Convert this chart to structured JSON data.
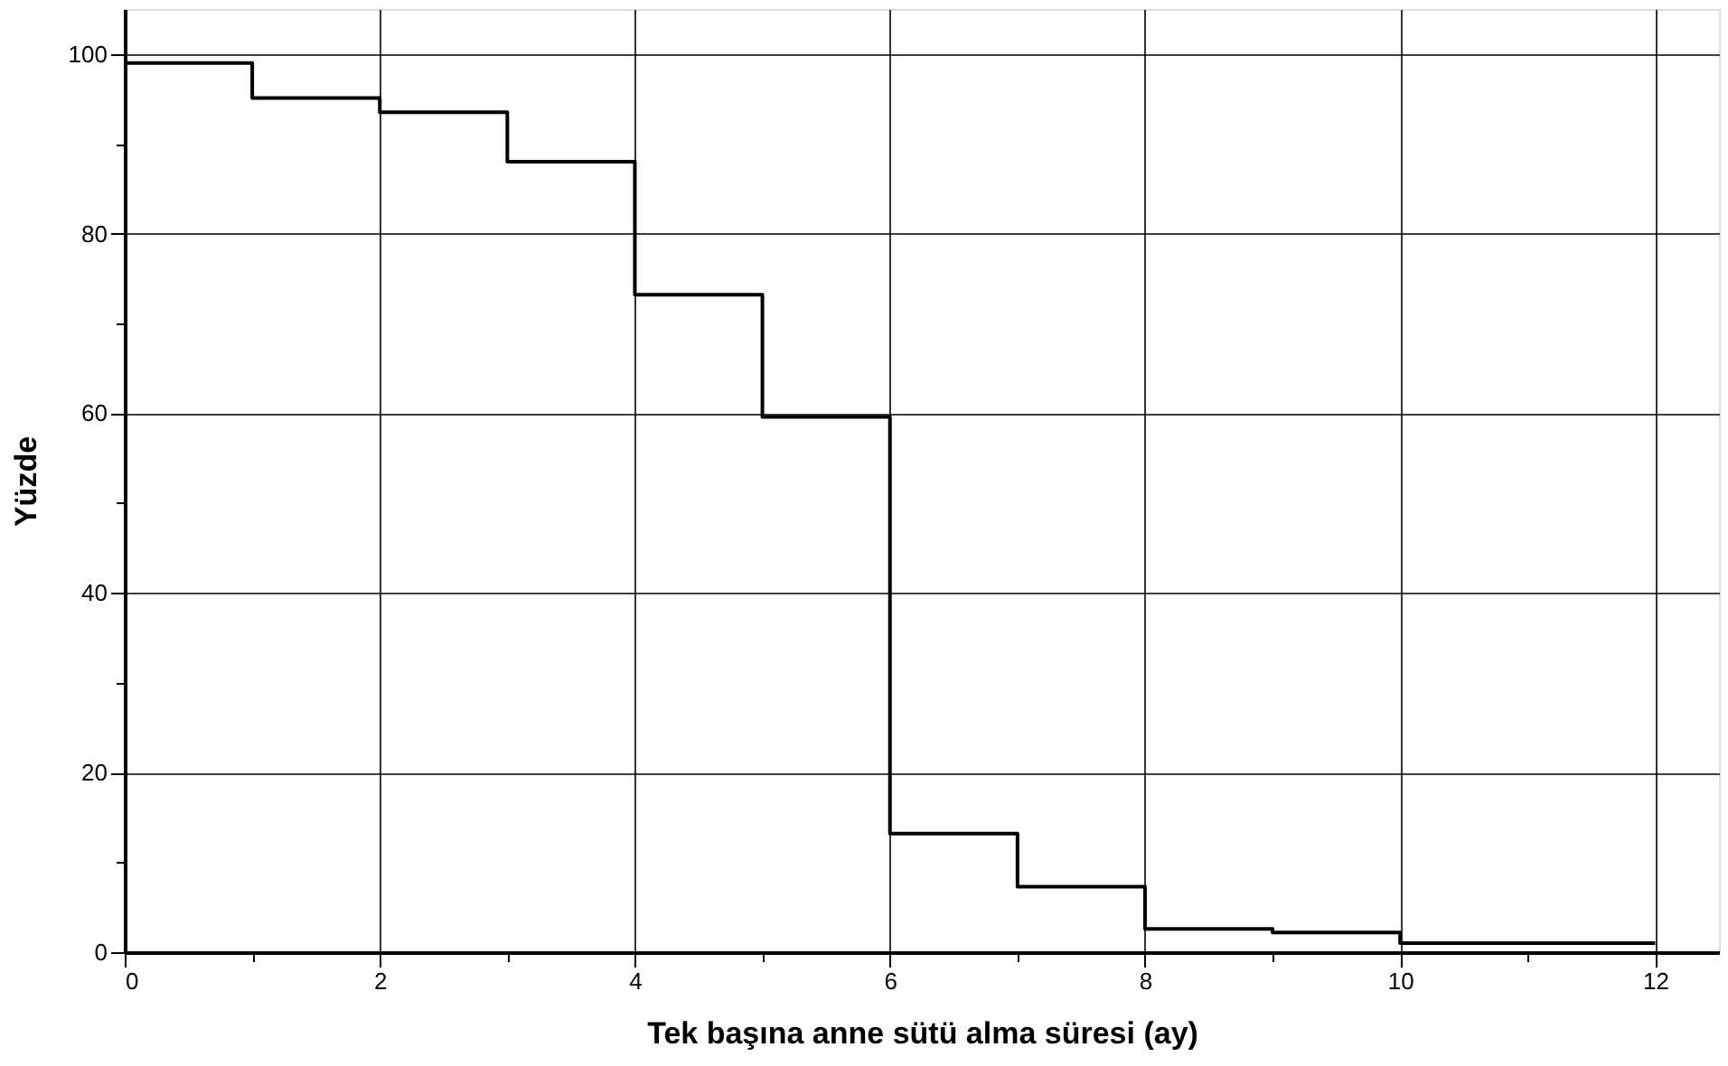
{
  "chart_data": {
    "type": "step",
    "xlabel": "Tek başına anne sütü alma süresi (ay)",
    "ylabel": "Yüzde",
    "x": [
      0,
      1,
      2,
      3,
      4,
      5,
      6,
      7,
      8,
      9,
      10,
      11,
      12
    ],
    "values": [
      99,
      95.1,
      93.5,
      88,
      73.2,
      59.6,
      13.2,
      7.3,
      2.6,
      2.2,
      1,
      1,
      1
    ],
    "color": "#000000",
    "xlim": [
      0,
      12.5
    ],
    "ylim": [
      0,
      105
    ],
    "xticks": [
      0,
      {
        "value": 1,
        "label": null
      },
      2,
      {
        "value": 3,
        "label": null
      },
      4,
      {
        "value": 5,
        "label": null
      },
      6,
      {
        "value": 7,
        "label": null
      },
      8,
      {
        "value": 9,
        "label": null
      },
      10,
      {
        "value": 11,
        "label": null
      },
      12
    ],
    "yticks": [
      0,
      {
        "value": 10,
        "label": null
      },
      20,
      {
        "value": 30,
        "label": null
      },
      40,
      {
        "value": 50,
        "label": null
      },
      60,
      {
        "value": 70,
        "label": null
      },
      80,
      {
        "value": 90,
        "label": null
      },
      100
    ],
    "grid": true
  }
}
